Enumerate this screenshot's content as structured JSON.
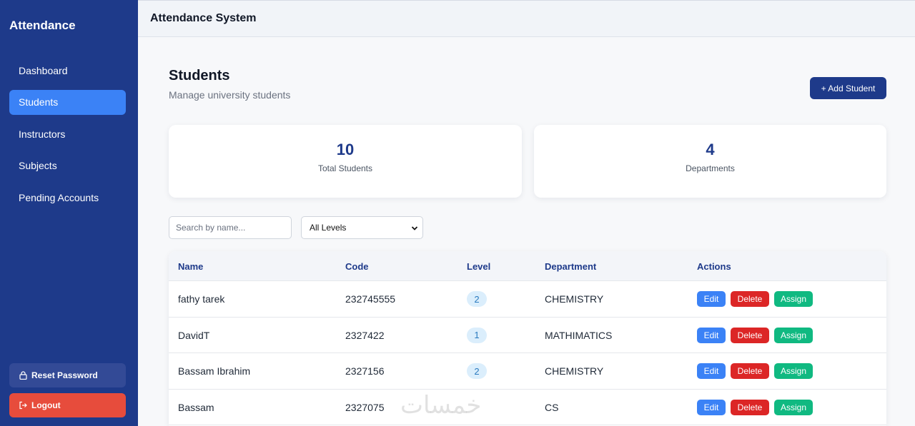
{
  "sidebar": {
    "brand": "Attendance",
    "items": [
      {
        "label": "Dashboard"
      },
      {
        "label": "Students"
      },
      {
        "label": "Instructors"
      },
      {
        "label": "Subjects"
      },
      {
        "label": "Pending Accounts"
      }
    ],
    "active_item": "Students",
    "reset_label": "Reset Password",
    "logout_label": "Logout"
  },
  "topbar": {
    "title": "Attendance System"
  },
  "page": {
    "title": "Students",
    "subtitle": "Manage university students",
    "add_label": "+ Add Student"
  },
  "stats": [
    {
      "value": "10",
      "label": "Total Students"
    },
    {
      "value": "4",
      "label": "Departments"
    }
  ],
  "filters": {
    "search_placeholder": "Search by name...",
    "level_selected": "All Levels"
  },
  "table": {
    "headers": [
      "Name",
      "Code",
      "Level",
      "Department",
      "Actions"
    ],
    "rows": [
      {
        "name": "fathy tarek",
        "code": "232745555",
        "level": "2",
        "department": "CHEMISTRY"
      },
      {
        "name": "DavidT",
        "code": "2327422",
        "level": "1",
        "department": "MATHIMATICS"
      },
      {
        "name": "Bassam Ibrahim",
        "code": "2327156",
        "level": "2",
        "department": "CHEMISTRY"
      },
      {
        "name": "Bassam",
        "code": "2327075",
        "level": "",
        "department": "CS"
      }
    ],
    "actions": {
      "edit": "Edit",
      "delete": "Delete",
      "assign": "Assign"
    }
  },
  "watermark": "خمسات",
  "colors": {
    "sidebar": "#1e3a8a",
    "active_nav": "#3b82f6",
    "edit": "#3b82f6",
    "delete": "#dc2626",
    "assign": "#10b981",
    "logout": "#e74c3c"
  }
}
